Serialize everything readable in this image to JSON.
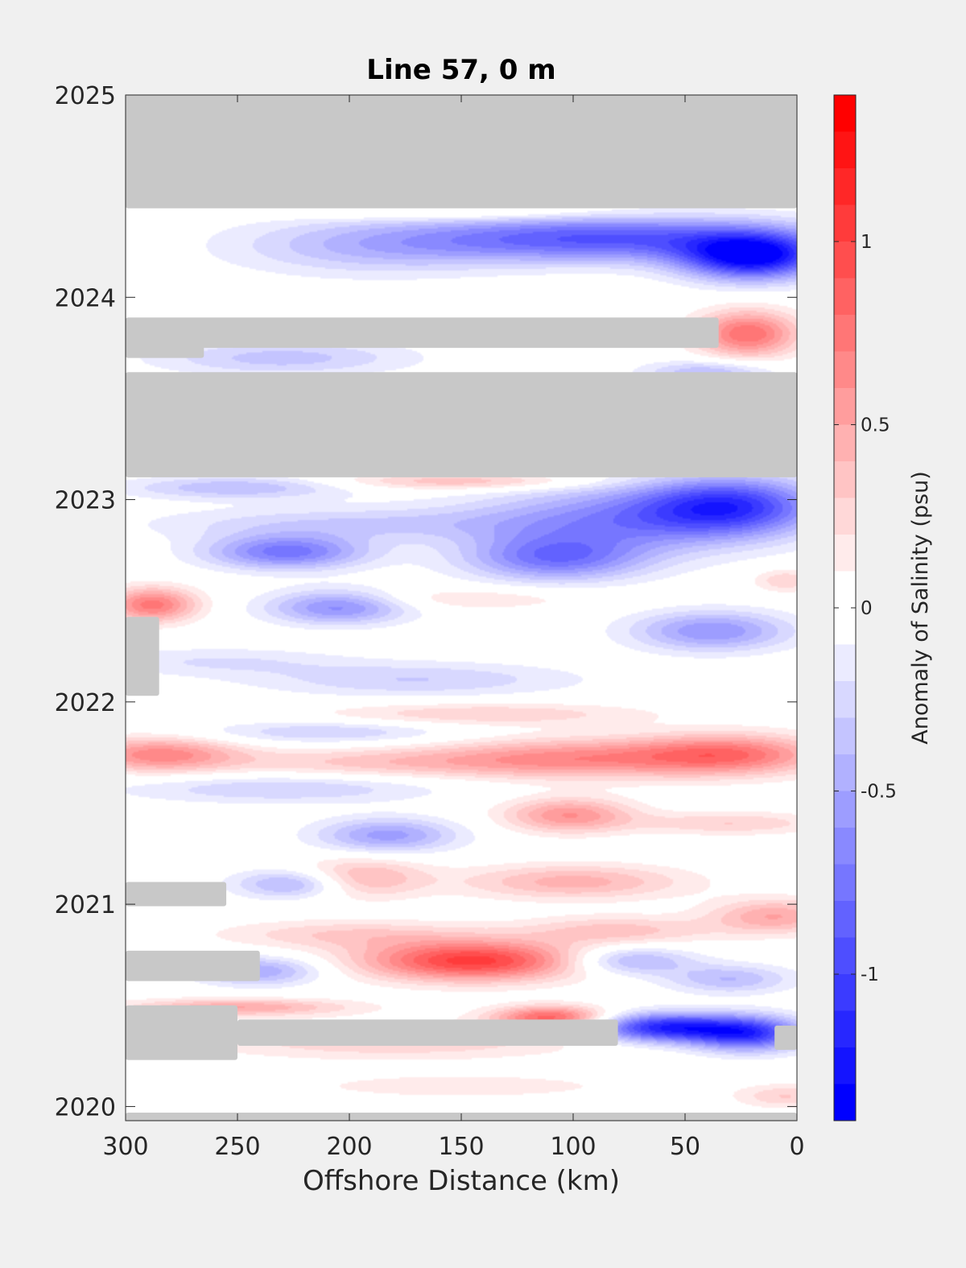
{
  "chart_data": {
    "type": "heatmap",
    "title": "Line 57, 0 m",
    "xlabel": "Offshore Distance (km)",
    "ylabel": "",
    "colorbar_label": "Anomaly of Salinity (psu)",
    "x_direction": "reversed",
    "xlim": [
      300,
      0
    ],
    "ylim": [
      2019.93,
      2025
    ],
    "xticks": [
      "300",
      "250",
      "200",
      "150",
      "100",
      "50",
      "0"
    ],
    "yticks": [
      "2020",
      "2021",
      "2022",
      "2023",
      "2024",
      "2025"
    ],
    "clim": [
      -1.4,
      1.4
    ],
    "colorbar_levels": 28,
    "colorbar_ticks": [
      "-1",
      "-0.5",
      "0",
      "0.5",
      "1"
    ],
    "colors": {
      "positive": "#ff0000",
      "negative": "#0000ff",
      "zero": "#ffffff",
      "missing": "#c8c8c8",
      "background": "#f0f0f0"
    },
    "no_data_bands": [
      {
        "date_start": 2024.44,
        "date_end": 2025.0,
        "x_far": 300,
        "x_near": 0
      },
      {
        "date_start": 2023.11,
        "date_end": 2023.63,
        "x_far": 300,
        "x_near": 0
      },
      {
        "date_start": 2023.75,
        "date_end": 2023.9,
        "x_far": 300,
        "x_near": 35
      },
      {
        "date_start": 2023.7,
        "date_end": 2023.78,
        "x_far": 300,
        "x_near": 265
      },
      {
        "date_start": 2022.03,
        "date_end": 2022.42,
        "x_far": 300,
        "x_near": 285
      },
      {
        "date_start": 2020.99,
        "date_end": 2021.11,
        "x_far": 300,
        "x_near": 255
      },
      {
        "date_start": 2020.62,
        "date_end": 2020.77,
        "x_far": 300,
        "x_near": 240
      },
      {
        "date_start": 2020.23,
        "date_end": 2020.5,
        "x_far": 300,
        "x_near": 250
      },
      {
        "date_start": 2020.3,
        "date_end": 2020.43,
        "x_far": 250,
        "x_near": 80
      },
      {
        "date_start": 2020.28,
        "date_end": 2020.4,
        "x_far": 10,
        "x_near": 0
      },
      {
        "date_start": 2019.93,
        "date_end": 2019.97,
        "x_far": 300,
        "x_near": 0
      }
    ],
    "anomalies": [
      {
        "x": 85,
        "date": 2024.29,
        "value": -0.9,
        "x_spread": 60,
        "date_spread": 0.08
      },
      {
        "x": 20,
        "date": 2024.2,
        "value": -1.3,
        "x_spread": 22,
        "date_spread": 0.08
      },
      {
        "x": 190,
        "date": 2024.25,
        "value": -0.35,
        "x_spread": 45,
        "date_spread": 0.1
      },
      {
        "x": 150,
        "date": 2024.42,
        "value": 0.25,
        "x_spread": 50,
        "date_spread": 0.03
      },
      {
        "x": 22,
        "date": 2023.82,
        "value": 0.8,
        "x_spread": 16,
        "date_spread": 0.08
      },
      {
        "x": 230,
        "date": 2023.7,
        "value": -0.35,
        "x_spread": 40,
        "date_spread": 0.06
      },
      {
        "x": 40,
        "date": 2023.63,
        "value": -0.4,
        "x_spread": 20,
        "date_spread": 0.04
      },
      {
        "x": 150,
        "date": 2023.09,
        "value": 0.4,
        "x_spread": 40,
        "date_spread": 0.03
      },
      {
        "x": 250,
        "date": 2023.06,
        "value": -0.4,
        "x_spread": 35,
        "date_spread": 0.04
      },
      {
        "x": 30,
        "date": 2022.97,
        "value": -0.95,
        "x_spread": 28,
        "date_spread": 0.1
      },
      {
        "x": 80,
        "date": 2022.9,
        "value": -0.6,
        "x_spread": 45,
        "date_spread": 0.12
      },
      {
        "x": 108,
        "date": 2022.71,
        "value": -0.7,
        "x_spread": 28,
        "date_spread": 0.08
      },
      {
        "x": 228,
        "date": 2022.74,
        "value": -0.75,
        "x_spread": 25,
        "date_spread": 0.06
      },
      {
        "x": 200,
        "date": 2022.88,
        "value": -0.3,
        "x_spread": 60,
        "date_spread": 0.06
      },
      {
        "x": 288,
        "date": 2022.48,
        "value": 0.75,
        "x_spread": 14,
        "date_spread": 0.06
      },
      {
        "x": 205,
        "date": 2022.47,
        "value": -0.65,
        "x_spread": 22,
        "date_spread": 0.06
      },
      {
        "x": 38,
        "date": 2022.35,
        "value": -0.6,
        "x_spread": 25,
        "date_spread": 0.07
      },
      {
        "x": 5,
        "date": 2022.6,
        "value": 0.3,
        "x_spread": 10,
        "date_spread": 0.04
      },
      {
        "x": 150,
        "date": 2022.51,
        "value": 0.2,
        "x_spread": 40,
        "date_spread": 0.04
      },
      {
        "x": 170,
        "date": 2022.11,
        "value": -0.3,
        "x_spread": 50,
        "date_spread": 0.06
      },
      {
        "x": 260,
        "date": 2022.2,
        "value": -0.2,
        "x_spread": 40,
        "date_spread": 0.05
      },
      {
        "x": 140,
        "date": 2021.94,
        "value": 0.3,
        "x_spread": 50,
        "date_spread": 0.04
      },
      {
        "x": 285,
        "date": 2021.74,
        "value": 0.65,
        "x_spread": 25,
        "date_spread": 0.06
      },
      {
        "x": 100,
        "date": 2021.72,
        "value": 0.6,
        "x_spread": 45,
        "date_spread": 0.07
      },
      {
        "x": 30,
        "date": 2021.74,
        "value": 0.7,
        "x_spread": 30,
        "date_spread": 0.07
      },
      {
        "x": 190,
        "date": 2021.7,
        "value": 0.3,
        "x_spread": 50,
        "date_spread": 0.05
      },
      {
        "x": 210,
        "date": 2021.85,
        "value": -0.3,
        "x_spread": 40,
        "date_spread": 0.04
      },
      {
        "x": 230,
        "date": 2021.57,
        "value": -0.3,
        "x_spread": 50,
        "date_spread": 0.05
      },
      {
        "x": 102,
        "date": 2021.44,
        "value": 0.6,
        "x_spread": 20,
        "date_spread": 0.06
      },
      {
        "x": 183,
        "date": 2021.34,
        "value": -0.55,
        "x_spread": 22,
        "date_spread": 0.06
      },
      {
        "x": 30,
        "date": 2021.4,
        "value": 0.3,
        "x_spread": 30,
        "date_spread": 0.04
      },
      {
        "x": 100,
        "date": 2021.11,
        "value": 0.45,
        "x_spread": 35,
        "date_spread": 0.06
      },
      {
        "x": 195,
        "date": 2021.13,
        "value": 0.45,
        "x_spread": 20,
        "date_spread": 0.07
      },
      {
        "x": 225,
        "date": 2021.1,
        "value": -0.5,
        "x_spread": 18,
        "date_spread": 0.05
      },
      {
        "x": 10,
        "date": 2020.94,
        "value": 0.5,
        "x_spread": 20,
        "date_spread": 0.06
      },
      {
        "x": 80,
        "date": 2020.87,
        "value": 0.35,
        "x_spread": 30,
        "date_spread": 0.05
      },
      {
        "x": 145,
        "date": 2020.72,
        "value": 1.05,
        "x_spread": 35,
        "date_spread": 0.07
      },
      {
        "x": 200,
        "date": 2020.85,
        "value": 0.3,
        "x_spread": 40,
        "date_spread": 0.05
      },
      {
        "x": 75,
        "date": 2020.72,
        "value": -0.5,
        "x_spread": 20,
        "date_spread": 0.05
      },
      {
        "x": 30,
        "date": 2020.63,
        "value": -0.4,
        "x_spread": 20,
        "date_spread": 0.05
      },
      {
        "x": 240,
        "date": 2020.67,
        "value": -0.5,
        "x_spread": 20,
        "date_spread": 0.05
      },
      {
        "x": 60,
        "date": 2020.39,
        "value": -1.15,
        "x_spread": 22,
        "date_spread": 0.05
      },
      {
        "x": 22,
        "date": 2020.36,
        "value": -1.05,
        "x_spread": 18,
        "date_spread": 0.06
      },
      {
        "x": 110,
        "date": 2020.44,
        "value": 0.85,
        "x_spread": 18,
        "date_spread": 0.04
      },
      {
        "x": 180,
        "date": 2020.32,
        "value": 0.3,
        "x_spread": 60,
        "date_spread": 0.06
      },
      {
        "x": 250,
        "date": 2020.49,
        "value": 0.5,
        "x_spread": 35,
        "date_spread": 0.03
      },
      {
        "x": 5,
        "date": 2020.05,
        "value": 0.3,
        "x_spread": 15,
        "date_spread": 0.04
      },
      {
        "x": 150,
        "date": 2020.1,
        "value": 0.15,
        "x_spread": 60,
        "date_spread": 0.05
      }
    ]
  }
}
